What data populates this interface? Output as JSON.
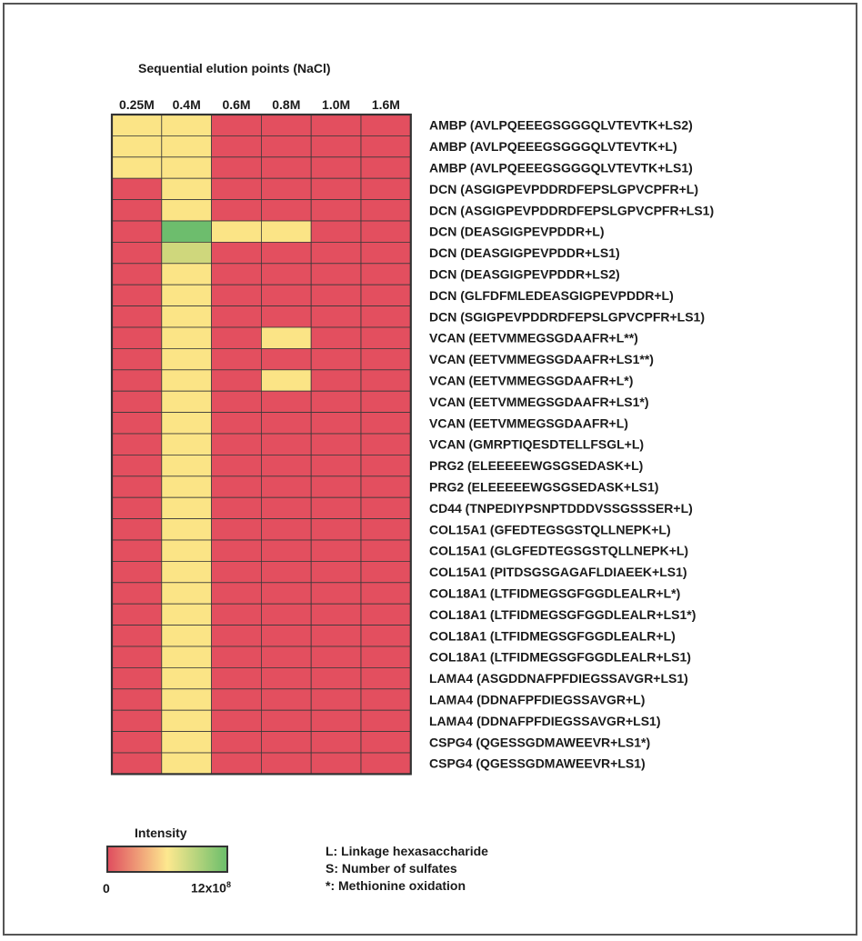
{
  "chart_data": {
    "type": "heatmap",
    "title": "Sequential elution points (NaCl)",
    "columns": [
      "0.25M",
      "0.4M",
      "0.6M",
      "0.8M",
      "1.0M",
      "1.6M"
    ],
    "rows": [
      "AMBP (AVLPQEEEGSGGGQLVTEVTK+LS2)",
      "AMBP (AVLPQEEEGSGGGQLVTEVTK+L)",
      "AMBP (AVLPQEEEGSGGGQLVTEVTK+LS1)",
      "DCN (ASGIGPEVPDDRDFEPSLGPVCPFR+L)",
      "DCN (ASGIGPEVPDDRDFEPSLGPVCPFR+LS1)",
      "DCN (DEASGIGPEVPDDR+L)",
      "DCN (DEASGIGPEVPDDR+LS1)",
      "DCN (DEASGIGPEVPDDR+LS2)",
      "DCN (GLFDFMLEDEASGIGPEVPDDR+L)",
      "DCN (SGIGPEVPDDRDFEPSLGPVCPFR+LS1)",
      "VCAN (EETVMMEGSGDAAFR+L**)",
      "VCAN (EETVMMEGSGDAAFR+LS1**)",
      "VCAN (EETVMMEGSGDAAFR+L*)",
      "VCAN (EETVMMEGSGDAAFR+LS1*)",
      "VCAN (EETVMMEGSGDAAFR+L)",
      "VCAN (GMRPTIQESDTELLFSGL+L)",
      "PRG2 (ELEEEEEWGSGSEDASK+L)",
      "PRG2 (ELEEEEEWGSGSEDASK+LS1)",
      "CD44 (TNPEDIYPSNPTDDDVSSGSSSER+L)",
      "COL15A1 (GFEDTEGSGSTQLLNEPK+L)",
      "COL15A1 (GLGFEDTEGSGSTQLLNEPK+L)",
      "COL15A1 (PITDSGSGAGAFLDIAEEK+LS1)",
      "COL18A1 (LTFIDMEGSGFGGDLEALR+L*)",
      "COL18A1 (LTFIDMEGSGFGGDLEALR+LS1*)",
      "COL18A1 (LTFIDMEGSGFGGDLEALR+L)",
      "COL18A1 (LTFIDMEGSGFGGDLEALR+LS1)",
      "LAMA4 (ASGDDNAFPFDIEGSSAVGR+LS1)",
      "LAMA4 (DDNAFPFDIEGSSAVGR+L)",
      "LAMA4 (DDNAFPFDIEGSSAVGR+LS1)",
      "CSPG4 (QGESSGDMAWEEVR+LS1*)",
      "CSPG4 (QGESSGDMAWEEVR+LS1)"
    ],
    "values": [
      [
        0.5,
        0.5,
        0,
        0,
        0,
        0
      ],
      [
        0.5,
        0.5,
        0,
        0,
        0,
        0
      ],
      [
        0.5,
        0.5,
        0,
        0,
        0,
        0
      ],
      [
        0,
        0.5,
        0,
        0,
        0,
        0
      ],
      [
        0,
        0.5,
        0,
        0,
        0,
        0
      ],
      [
        0,
        12,
        0.5,
        0.5,
        0,
        0
      ],
      [
        0,
        7,
        0,
        0,
        0,
        0
      ],
      [
        0,
        0.5,
        0,
        0,
        0,
        0
      ],
      [
        0,
        0.5,
        0,
        0,
        0,
        0
      ],
      [
        0,
        0.5,
        0,
        0,
        0,
        0
      ],
      [
        0,
        0.5,
        0,
        0.5,
        0,
        0
      ],
      [
        0,
        0.5,
        0,
        0,
        0,
        0
      ],
      [
        0,
        0.5,
        0,
        0.5,
        0,
        0
      ],
      [
        0,
        0.5,
        0,
        0,
        0,
        0
      ],
      [
        0,
        0.5,
        0,
        0,
        0,
        0
      ],
      [
        0,
        0.5,
        0,
        0,
        0,
        0
      ],
      [
        0,
        0.5,
        0,
        0,
        0,
        0
      ],
      [
        0,
        0.5,
        0,
        0,
        0,
        0
      ],
      [
        0,
        0.5,
        0,
        0,
        0,
        0
      ],
      [
        0,
        0.5,
        0,
        0,
        0,
        0
      ],
      [
        0,
        0.5,
        0,
        0,
        0,
        0
      ],
      [
        0,
        0.5,
        0,
        0,
        0,
        0
      ],
      [
        0,
        0.5,
        0,
        0,
        0,
        0
      ],
      [
        0,
        0.5,
        0,
        0,
        0,
        0
      ],
      [
        0,
        0.5,
        0,
        0,
        0,
        0
      ],
      [
        0,
        0.5,
        0,
        0,
        0,
        0
      ],
      [
        0,
        0.5,
        0,
        0,
        0,
        0
      ],
      [
        0,
        0.5,
        0,
        0,
        0,
        0
      ],
      [
        0,
        0.5,
        0,
        0,
        0,
        0
      ],
      [
        0,
        0.5,
        0,
        0,
        0,
        0
      ],
      [
        0,
        0.5,
        0,
        0,
        0,
        0
      ]
    ],
    "value_unit_note": "approximate intensity in units of 10^8",
    "colorbar": {
      "title": "Intensity",
      "min_label": "0",
      "max_label": "12x10",
      "max_label_exp": "8",
      "colors": [
        "#e04f5f",
        "#fde88f",
        "#6dbf6b"
      ]
    },
    "cell_colors": {
      "zero": "#e34f5f",
      "low": "#fbe486",
      "mid": "#cfd77c",
      "high": "#6dbd6d"
    }
  },
  "legend_notes": [
    {
      "symbol": "L:",
      "text": "Linkage hexasaccharide"
    },
    {
      "symbol": "S:",
      "text": "Number of sulfates"
    },
    {
      "symbol": "*:",
      "text": "Methionine oxidation"
    }
  ]
}
